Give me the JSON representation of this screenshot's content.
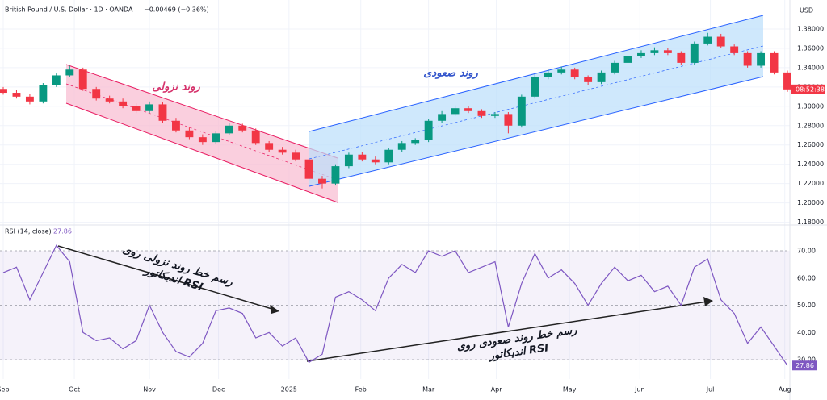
{
  "chart_data": [
    {
      "type": "candlestick",
      "title": "British Pound / U.S. Dollar · 1D · OANDA",
      "subtitle": "−0.00469 (−0.36%)",
      "currency": "USD",
      "countdown": "08:52:38",
      "up_color": "#089981",
      "down_color": "#f23645",
      "open": [
        1.318,
        1.314,
        1.31,
        1.305,
        1.322,
        1.332,
        1.338,
        1.318,
        1.308,
        1.305,
        1.3,
        1.295,
        1.302,
        1.285,
        1.275,
        1.268,
        1.263,
        1.272,
        1.28,
        1.275,
        1.262,
        1.255,
        1.252,
        1.245,
        1.225,
        1.22,
        1.238,
        1.25,
        1.245,
        1.242,
        1.255,
        1.262,
        1.265,
        1.285,
        1.292,
        1.298,
        1.295,
        1.29,
        1.292,
        1.28,
        1.31,
        1.33,
        1.335,
        1.338,
        1.33,
        1.325,
        1.335,
        1.345,
        1.352,
        1.355,
        1.358,
        1.355,
        1.345,
        1.365,
        1.372,
        1.362,
        1.355,
        1.342,
        1.355,
        1.335
      ],
      "high": [
        1.32,
        1.317,
        1.313,
        1.324,
        1.334,
        1.342,
        1.34,
        1.32,
        1.311,
        1.308,
        1.303,
        1.305,
        1.304,
        1.288,
        1.278,
        1.271,
        1.274,
        1.283,
        1.282,
        1.277,
        1.264,
        1.258,
        1.255,
        1.247,
        1.228,
        1.24,
        1.252,
        1.253,
        1.248,
        1.257,
        1.264,
        1.267,
        1.287,
        1.295,
        1.301,
        1.3,
        1.297,
        1.294,
        1.294,
        1.312,
        1.333,
        1.338,
        1.341,
        1.34,
        1.332,
        1.337,
        1.347,
        1.355,
        1.358,
        1.361,
        1.36,
        1.357,
        1.367,
        1.376,
        1.375,
        1.364,
        1.357,
        1.357,
        1.357,
        1.337
      ],
      "low": [
        1.312,
        1.308,
        1.302,
        1.303,
        1.32,
        1.33,
        1.316,
        1.306,
        1.303,
        1.298,
        1.293,
        1.293,
        1.283,
        1.273,
        1.266,
        1.26,
        1.261,
        1.27,
        1.273,
        1.26,
        1.253,
        1.25,
        1.243,
        1.223,
        1.215,
        1.218,
        1.236,
        1.243,
        1.24,
        1.24,
        1.253,
        1.26,
        1.263,
        1.283,
        1.29,
        1.293,
        1.288,
        1.288,
        1.272,
        1.278,
        1.308,
        1.328,
        1.333,
        1.328,
        1.322,
        1.323,
        1.333,
        1.343,
        1.35,
        1.353,
        1.353,
        1.343,
        1.343,
        1.363,
        1.36,
        1.353,
        1.34,
        1.34,
        1.333,
        1.315
      ],
      "close": [
        1.314,
        1.31,
        1.305,
        1.322,
        1.332,
        1.338,
        1.318,
        1.308,
        1.305,
        1.3,
        1.295,
        1.302,
        1.285,
        1.275,
        1.268,
        1.263,
        1.272,
        1.28,
        1.275,
        1.262,
        1.255,
        1.252,
        1.245,
        1.225,
        1.22,
        1.238,
        1.25,
        1.245,
        1.242,
        1.255,
        1.262,
        1.265,
        1.285,
        1.292,
        1.298,
        1.295,
        1.29,
        1.292,
        1.28,
        1.31,
        1.33,
        1.335,
        1.338,
        1.33,
        1.325,
        1.335,
        1.345,
        1.352,
        1.355,
        1.358,
        1.355,
        1.345,
        1.365,
        1.372,
        1.362,
        1.355,
        1.342,
        1.355,
        1.335,
        1.3175
      ],
      "xlim": [
        0,
        59
      ],
      "xticks": [
        {
          "value": 0,
          "label": "Sep"
        },
        {
          "value": 5.35,
          "label": "Oct"
        },
        {
          "value": 11,
          "label": "Nov"
        },
        {
          "value": 16.2,
          "label": "Dec"
        },
        {
          "value": 21.5,
          "label": "2025"
        },
        {
          "value": 26.9,
          "label": "Feb"
        },
        {
          "value": 32,
          "label": "Mar"
        },
        {
          "value": 37.1,
          "label": "Apr"
        },
        {
          "value": 42.6,
          "label": "May"
        },
        {
          "value": 47.9,
          "label": "Jun"
        },
        {
          "value": 53.2,
          "label": "Jul"
        },
        {
          "value": 58.8,
          "label": "Aug"
        }
      ],
      "ylim": [
        1.178,
        1.41
      ],
      "yticks": [
        {
          "value": 1.18,
          "label": "1.18000"
        },
        {
          "value": 1.2,
          "label": "1.20000"
        },
        {
          "value": 1.22,
          "label": "1.22000"
        },
        {
          "value": 1.24,
          "label": "1.24000"
        },
        {
          "value": 1.26,
          "label": "1.26000"
        },
        {
          "value": 1.28,
          "label": "1.28000"
        },
        {
          "value": 1.3,
          "label": "1.30000"
        },
        {
          "value": 1.32,
          "label": "1.32000"
        },
        {
          "value": 1.34,
          "label": "1.34000"
        },
        {
          "value": 1.36,
          "label": "1.36000"
        },
        {
          "value": 1.38,
          "label": "1.38000"
        }
      ],
      "annotations": [
        "روند نزولی",
        "روند صعودی"
      ]
    },
    {
      "type": "line",
      "title": "RSI (14, close)",
      "color": "#7e57c2",
      "values": [
        62,
        64,
        52,
        62,
        72,
        66,
        40,
        37,
        38,
        34,
        37,
        50,
        40,
        33,
        31,
        36,
        48,
        49,
        47,
        38,
        40,
        35,
        38,
        29,
        32,
        53,
        55,
        52,
        48,
        60,
        65,
        62,
        70,
        68,
        70,
        62,
        64,
        66,
        42,
        58,
        69,
        60,
        63,
        58,
        50,
        58,
        64,
        59,
        61,
        55,
        57,
        50,
        64,
        67,
        52,
        47,
        36,
        42,
        35,
        27.86
      ],
      "value_labels": "27.86",
      "ylim": [
        22.9,
        78.6
      ],
      "yticks": [
        {
          "value": 30,
          "label": "30.00"
        },
        {
          "value": 40,
          "label": "40.00"
        },
        {
          "value": 50,
          "label": "50.00"
        },
        {
          "value": 60,
          "label": "60.00"
        },
        {
          "value": 70,
          "label": "70.00"
        }
      ],
      "annotations": [
        [
          "رسم خط روند نزولی روی",
          "اندیکاتور RSI"
        ],
        [
          "رسم خط روند صعودی روی",
          "اندیکاتور RSI"
        ]
      ]
    }
  ]
}
